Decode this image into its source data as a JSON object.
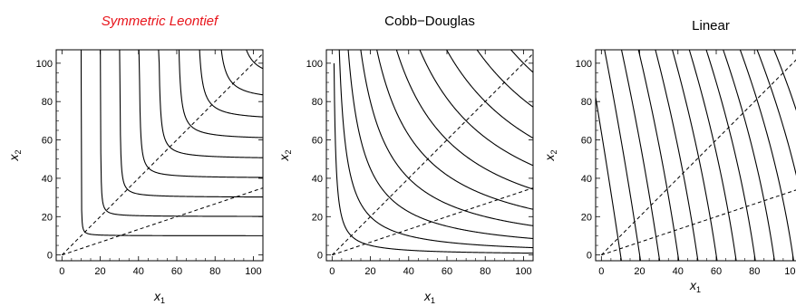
{
  "chart_data": [
    {
      "type": "line",
      "title": "Symmetric Leontief",
      "title_color": "#e8141b",
      "xlabel": "x1",
      "ylabel": "x2",
      "xlim": [
        -3,
        105
      ],
      "ylim": [
        -3,
        107
      ],
      "xticks": [
        0,
        20,
        40,
        60,
        80,
        100
      ],
      "yticks": [
        0,
        20,
        40,
        60,
        80,
        100
      ],
      "isoquant_levels": [
        10,
        20,
        30,
        40,
        50,
        60,
        70,
        80,
        90,
        100
      ],
      "curve_style": "smooth L-shaped (kink at x1 = x2 = level)",
      "dashed_rays_slopes": [
        1,
        0.333
      ]
    },
    {
      "type": "line",
      "title": "Cobb−Douglas",
      "title_color": "#000000",
      "xlabel": "x1",
      "ylabel": "x2",
      "xlim": [
        -3,
        105
      ],
      "ylim": [
        -3,
        107
      ],
      "xticks": [
        0,
        20,
        40,
        60,
        80,
        100
      ],
      "yticks": [
        0,
        20,
        40,
        60,
        80,
        100
      ],
      "isoquant_levels": [
        10,
        20,
        30,
        40,
        50,
        60,
        70,
        80,
        90,
        100
      ],
      "curve_formula": "x1 * x2 = level^2",
      "dashed_rays_slopes": [
        1,
        0.333
      ]
    },
    {
      "type": "line",
      "title": "Linear",
      "title_color": "#000000",
      "xlabel": "x1",
      "ylabel": "x2",
      "xlim": [
        -3,
        105
      ],
      "ylim": [
        -3,
        107
      ],
      "xticks": [
        0,
        20,
        40,
        60,
        80,
        100
      ],
      "yticks": [
        0,
        20,
        40,
        60,
        80,
        100
      ],
      "isoquant_levels": [
        10,
        20,
        30,
        40,
        50,
        60,
        70,
        80,
        90,
        100,
        110,
        120
      ],
      "curve_formula": "x1 + 0.15 * x2 = level",
      "dashed_rays_slopes": [
        1,
        0.333
      ]
    }
  ]
}
